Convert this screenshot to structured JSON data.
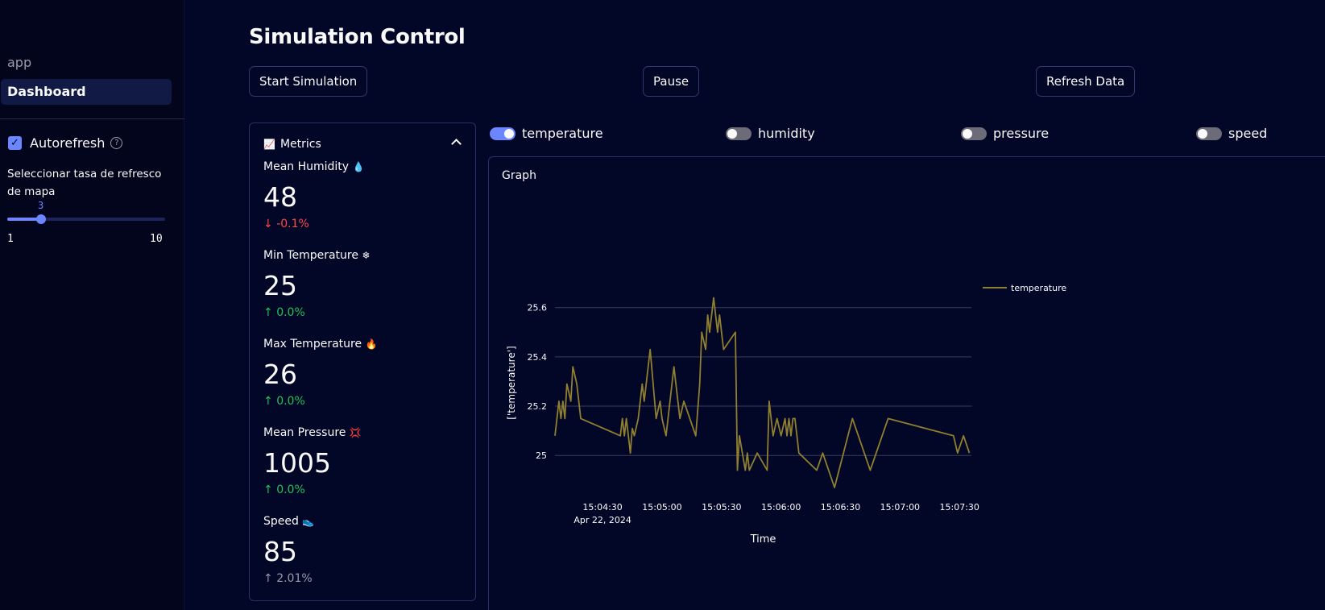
{
  "sidebar": {
    "nav": [
      {
        "label": "app",
        "active": false
      },
      {
        "label": "Dashboard",
        "active": true
      }
    ],
    "autorefresh": {
      "label": "Autorefresh",
      "checked": true,
      "help_icon": "question-circle-icon"
    },
    "slider": {
      "label": "Seleccionar tasa de refresco de mapa",
      "value": 3,
      "min": 1,
      "max": 10
    }
  },
  "main": {
    "title": "Simulation Control",
    "buttons": {
      "start": "Start Simulation",
      "pause": "Pause",
      "refresh": "Refresh Data"
    }
  },
  "metrics": {
    "title": "Metrics",
    "icon": "chart-increasing-icon",
    "items": [
      {
        "label": "Mean Humidity",
        "emoji": "💧",
        "value": "48",
        "delta": "-0.1%",
        "direction": "down"
      },
      {
        "label": "Min Temperature",
        "emoji": "❄",
        "value": "25",
        "delta": "0.0%",
        "direction": "up"
      },
      {
        "label": "Max Temperature",
        "emoji": "🔥",
        "value": "26",
        "delta": "0.0%",
        "direction": "up"
      },
      {
        "label": "Mean Pressure",
        "emoji": "💢",
        "value": "1005",
        "delta": "0.0%",
        "direction": "up"
      },
      {
        "label": "Speed",
        "emoji": "👟",
        "value": "85",
        "delta": "2.01%",
        "direction": "neutral"
      }
    ]
  },
  "toggles": [
    {
      "label": "temperature",
      "on": true
    },
    {
      "label": "humidity",
      "on": false
    },
    {
      "label": "pressure",
      "on": false
    },
    {
      "label": "speed",
      "on": false
    }
  ],
  "graph": {
    "title": "Graph"
  },
  "colors": {
    "line": "#8f7f2f",
    "accent": "#6b86ff",
    "background": "#020627"
  },
  "chart_data": {
    "type": "line",
    "xlabel": "Time",
    "ylabel": "['temperature']",
    "ylim": [
      24.87,
      25.72
    ],
    "yticks": [
      25,
      25.2,
      25.4,
      25.6
    ],
    "xlim": [
      "15:04:06",
      "15:07:36"
    ],
    "xtick_labels": [
      "15:04:30",
      "15:05:00",
      "15:05:30",
      "15:06:00",
      "15:06:30",
      "15:07:00",
      "15:07:30"
    ],
    "xtick_sublabel": "Apr 22, 2024",
    "legend": "top-right",
    "series": [
      {
        "name": "temperature",
        "x": [
          "15:04:06",
          "15:04:08",
          "15:04:09",
          "15:04:10",
          "15:04:11",
          "15:04:12",
          "15:04:14",
          "15:04:15",
          "15:04:17",
          "15:04:19",
          "15:04:39",
          "15:04:40",
          "15:04:41",
          "15:04:42",
          "15:04:44",
          "15:04:45",
          "15:04:46",
          "15:04:48",
          "15:04:50",
          "15:04:51",
          "15:04:54",
          "15:04:57",
          "15:04:59",
          "15:05:00",
          "15:05:02",
          "15:05:06",
          "15:05:08",
          "15:05:09",
          "15:05:11",
          "15:05:17",
          "15:05:19",
          "15:05:20",
          "15:05:22",
          "15:05:23",
          "15:05:24",
          "15:05:25",
          "15:05:26",
          "15:05:28",
          "15:05:29",
          "15:05:31",
          "15:05:37",
          "15:05:38",
          "15:05:39",
          "15:05:42",
          "15:05:43",
          "15:05:44",
          "15:05:48",
          "15:05:53",
          "15:05:54",
          "15:05:56",
          "15:05:58",
          "15:06:00",
          "15:06:02",
          "15:06:03",
          "15:06:04",
          "15:06:05",
          "15:06:06",
          "15:06:07",
          "15:06:08",
          "15:06:09",
          "15:06:18",
          "15:06:21",
          "15:06:27",
          "15:06:36",
          "15:06:45",
          "15:06:54",
          "15:07:27",
          "15:07:29",
          "15:07:32",
          "15:07:35"
        ],
        "values": [
          25.08,
          25.22,
          25.15,
          25.22,
          25.15,
          25.29,
          25.22,
          25.36,
          25.29,
          25.15,
          25.08,
          25.15,
          25.08,
          25.15,
          25.01,
          25.11,
          25.08,
          25.15,
          25.29,
          25.22,
          25.43,
          25.15,
          25.22,
          25.15,
          25.08,
          25.36,
          25.22,
          25.15,
          25.22,
          25.08,
          25.29,
          25.5,
          25.43,
          25.57,
          25.5,
          25.57,
          25.64,
          25.5,
          25.57,
          25.43,
          25.5,
          24.94,
          25.08,
          24.94,
          25.01,
          24.94,
          25.01,
          24.94,
          25.22,
          25.08,
          25.15,
          25.08,
          25.15,
          25.08,
          25.15,
          25.08,
          25.15,
          25.15,
          25.08,
          25.01,
          24.94,
          25.01,
          24.87,
          25.15,
          24.94,
          25.15,
          25.08,
          25.01,
          25.08,
          25.01
        ]
      }
    ]
  }
}
